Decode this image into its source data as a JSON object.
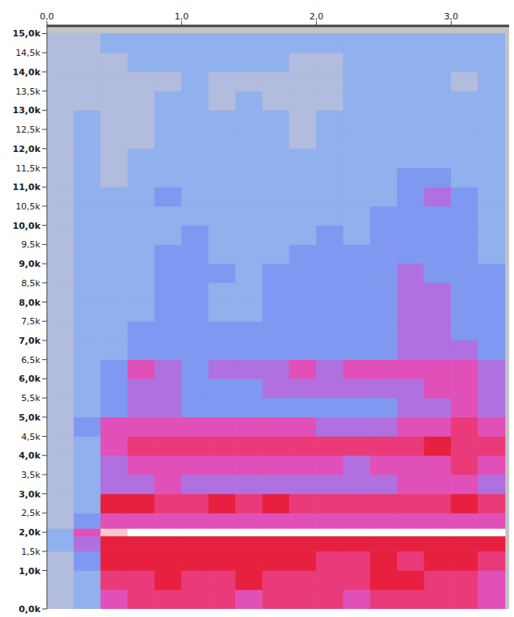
{
  "chart_data": {
    "type": "heatmap",
    "x_bins": [
      0,
      0.2,
      0.4,
      0.6,
      0.8,
      1.0,
      1.2,
      1.4,
      1.6,
      1.8,
      2.0,
      2.2,
      2.4,
      2.6,
      2.8,
      3.0,
      3.2,
      3.4
    ],
    "y_bins": [
      0,
      500,
      1000,
      1500,
      1900,
      2100,
      2500,
      3000,
      3500,
      4000,
      4500,
      5000,
      5500,
      6000,
      6500,
      7000,
      7500,
      8000,
      8500,
      9000,
      9500,
      10000,
      10500,
      11000,
      11500,
      12000,
      12500,
      13000,
      13500,
      14000,
      14500,
      15000
    ],
    "cells": [
      [
        1,
        2,
        5,
        6,
        6,
        6,
        6,
        5,
        6,
        6,
        6,
        5,
        6,
        6,
        6,
        6,
        5
      ],
      [
        1,
        2,
        6,
        6,
        7,
        6,
        6,
        7,
        6,
        6,
        6,
        6,
        7,
        7,
        6,
        6,
        5
      ],
      [
        1,
        3,
        7,
        7,
        7,
        7,
        7,
        7,
        7,
        7,
        6,
        6,
        7,
        6,
        7,
        7,
        6
      ],
      [
        2,
        4,
        7,
        7,
        7,
        7,
        7,
        7,
        7,
        7,
        7,
        7,
        7,
        7,
        7,
        7,
        7
      ],
      [
        2,
        5,
        8,
        9,
        9,
        9,
        9,
        9,
        9,
        9,
        9,
        9,
        9,
        9,
        9,
        9,
        9
      ],
      [
        1,
        3,
        5,
        5,
        5,
        5,
        5,
        5,
        5,
        5,
        5,
        5,
        5,
        5,
        5,
        5,
        5
      ],
      [
        1,
        2,
        7,
        7,
        6,
        6,
        7,
        6,
        7,
        6,
        6,
        6,
        6,
        6,
        6,
        7,
        6
      ],
      [
        1,
        2,
        4,
        4,
        5,
        4,
        4,
        4,
        4,
        4,
        4,
        4,
        4,
        5,
        5,
        5,
        4
      ],
      [
        1,
        2,
        4,
        5,
        5,
        5,
        5,
        5,
        5,
        5,
        5,
        4,
        5,
        5,
        5,
        6,
        5
      ],
      [
        1,
        2,
        5,
        6,
        6,
        6,
        6,
        6,
        6,
        6,
        6,
        6,
        6,
        6,
        7,
        6,
        6
      ],
      [
        1,
        3,
        5,
        5,
        5,
        5,
        5,
        5,
        5,
        5,
        4,
        4,
        4,
        5,
        5,
        6,
        5
      ],
      [
        1,
        2,
        3,
        4,
        4,
        3,
        3,
        3,
        3,
        3,
        3,
        3,
        3,
        4,
        4,
        5,
        4
      ],
      [
        1,
        2,
        3,
        4,
        4,
        3,
        3,
        3,
        4,
        4,
        4,
        4,
        4,
        4,
        5,
        5,
        4
      ],
      [
        1,
        2,
        3,
        5,
        4,
        3,
        4,
        4,
        4,
        5,
        4,
        5,
        5,
        5,
        5,
        5,
        4
      ],
      [
        1,
        2,
        2,
        3,
        3,
        3,
        3,
        3,
        3,
        3,
        3,
        3,
        3,
        4,
        4,
        4,
        3
      ],
      [
        1,
        2,
        2,
        3,
        3,
        3,
        3,
        3,
        3,
        3,
        3,
        3,
        3,
        4,
        4,
        3,
        3
      ],
      [
        1,
        2,
        2,
        2,
        3,
        3,
        2,
        2,
        3,
        3,
        3,
        3,
        3,
        4,
        4,
        3,
        3
      ],
      [
        1,
        2,
        2,
        2,
        3,
        3,
        2,
        2,
        3,
        3,
        3,
        3,
        3,
        4,
        4,
        3,
        3
      ],
      [
        1,
        2,
        2,
        2,
        3,
        3,
        3,
        2,
        3,
        3,
        3,
        3,
        3,
        4,
        3,
        3,
        3
      ],
      [
        1,
        2,
        2,
        2,
        3,
        3,
        2,
        2,
        2,
        3,
        3,
        3,
        3,
        3,
        3,
        3,
        2
      ],
      [
        1,
        2,
        2,
        2,
        2,
        3,
        2,
        2,
        2,
        2,
        3,
        2,
        3,
        3,
        3,
        3,
        2
      ],
      [
        1,
        2,
        2,
        2,
        2,
        2,
        2,
        2,
        2,
        2,
        2,
        2,
        3,
        3,
        3,
        3,
        2
      ],
      [
        1,
        2,
        2,
        2,
        3,
        2,
        2,
        2,
        2,
        2,
        2,
        2,
        2,
        3,
        4,
        3,
        2
      ],
      [
        1,
        2,
        1,
        2,
        2,
        2,
        2,
        2,
        2,
        2,
        2,
        2,
        2,
        3,
        3,
        2,
        2
      ],
      [
        1,
        2,
        1,
        2,
        2,
        2,
        2,
        2,
        2,
        2,
        2,
        2,
        2,
        2,
        2,
        2,
        2
      ],
      [
        1,
        2,
        1,
        1,
        2,
        2,
        2,
        2,
        2,
        1,
        2,
        2,
        2,
        2,
        2,
        2,
        2
      ],
      [
        1,
        2,
        1,
        1,
        2,
        2,
        2,
        2,
        2,
        1,
        2,
        2,
        2,
        2,
        2,
        2,
        2
      ],
      [
        1,
        1,
        1,
        1,
        2,
        2,
        1,
        2,
        1,
        1,
        1,
        2,
        2,
        2,
        2,
        2,
        2
      ],
      [
        1,
        1,
        1,
        1,
        1,
        2,
        1,
        1,
        1,
        1,
        1,
        2,
        2,
        2,
        2,
        1,
        2
      ],
      [
        1,
        1,
        1,
        2,
        2,
        2,
        2,
        2,
        2,
        1,
        1,
        2,
        2,
        2,
        2,
        2,
        2
      ],
      [
        1,
        1,
        2,
        2,
        2,
        2,
        2,
        2,
        2,
        2,
        2,
        2,
        2,
        2,
        2,
        2,
        2
      ]
    ],
    "zlim": [
      0,
      9
    ],
    "xlim": [
      0,
      3.43
    ],
    "ylim": [
      0,
      15200
    ],
    "xticks": [
      {
        "value": 0,
        "label": "0,0"
      },
      {
        "value": 1,
        "label": "1,0"
      },
      {
        "value": 2,
        "label": "2,0"
      },
      {
        "value": 3,
        "label": "3,0"
      }
    ],
    "yticks": [
      {
        "value": 0,
        "label": "0,0k"
      },
      {
        "value": 1000,
        "label": "1,0k"
      },
      {
        "value": 1500,
        "label": "1,5k"
      },
      {
        "value": 2000,
        "label": "2,0k"
      },
      {
        "value": 2500,
        "label": "2,5k"
      },
      {
        "value": 3000,
        "label": "3,0k"
      },
      {
        "value": 3500,
        "label": "3,5k"
      },
      {
        "value": 4000,
        "label": "4,0k"
      },
      {
        "value": 4500,
        "label": "4,5k"
      },
      {
        "value": 5000,
        "label": "5,0k"
      },
      {
        "value": 5500,
        "label": "5,5k"
      },
      {
        "value": 6000,
        "label": "6,0k"
      },
      {
        "value": 6500,
        "label": "6,5k"
      },
      {
        "value": 7000,
        "label": "7,0k"
      },
      {
        "value": 7500,
        "label": "7,5k"
      },
      {
        "value": 8000,
        "label": "8,0k"
      },
      {
        "value": 8500,
        "label": "8,5k"
      },
      {
        "value": 9000,
        "label": "9,0k"
      },
      {
        "value": 9500,
        "label": "9,5k"
      },
      {
        "value": 10000,
        "label": "10,0k"
      },
      {
        "value": 10500,
        "label": "10,5k"
      },
      {
        "value": 11000,
        "label": "11,0k"
      },
      {
        "value": 11500,
        "label": "11,5k"
      },
      {
        "value": 12000,
        "label": "12,0k"
      },
      {
        "value": 12500,
        "label": "12,5k"
      },
      {
        "value": 13000,
        "label": "13,0k"
      },
      {
        "value": 13500,
        "label": "13,5k"
      },
      {
        "value": 14000,
        "label": "14,0k"
      },
      {
        "value": 14500,
        "label": "14,5k"
      },
      {
        "value": 15000,
        "label": "15,0k"
      }
    ],
    "grid": false
  }
}
